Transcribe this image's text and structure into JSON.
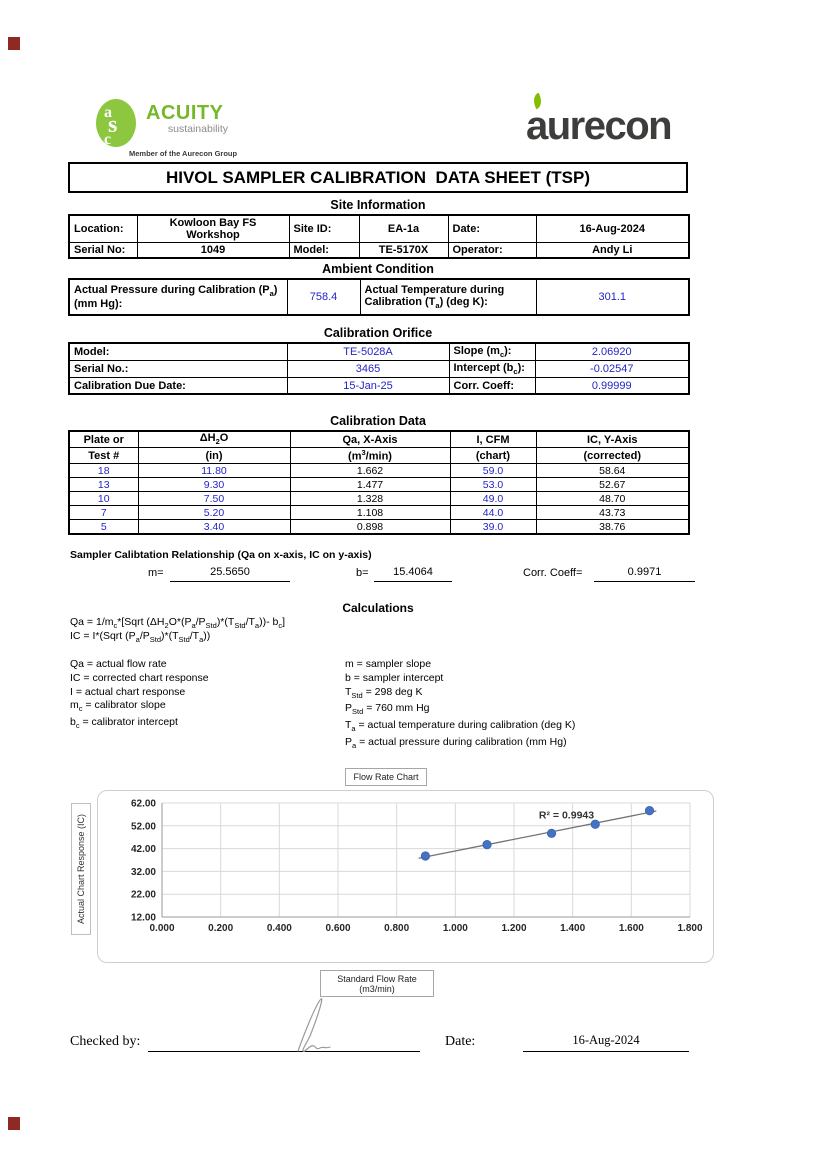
{
  "header": {
    "acuity": {
      "monogram": [
        "a",
        "s",
        "c"
      ],
      "name": "ACUITY",
      "tagline": "sustainability",
      "member_text": "Member of the Aurecon Group",
      "green": "#8dc63f"
    },
    "aurecon": {
      "wordmark": "aurecon",
      "dark": "#3d3d3b",
      "leaf_green": "#84bd00"
    }
  },
  "title": "HIVOL SAMPLER CALIBRATION  DATA SHEET (TSP)",
  "site": {
    "heading": "Site Information",
    "location_label": "Location:",
    "location_value": "Kowloon Bay FS Workshop",
    "site_id_label": "Site ID:",
    "site_id_value": "EA-1a",
    "date_label": "Date:",
    "date_value": "16-Aug-2024",
    "serial_label": "Serial No:",
    "serial_value": "1049",
    "model_label": "Model:",
    "model_value": "TE-5170X",
    "operator_label": "Operator:",
    "operator_value": "Andy Li"
  },
  "ambient": {
    "heading": "Ambient Condition",
    "pressure_label_html": "Actual Pressure during Calibration (P<sub>a</sub>)<br>(mm Hg):",
    "pressure_value": "758.4",
    "temperature_label_html": "Actual Temperature during<br>Calibration (T<sub>a</sub>) (deg K):",
    "temperature_value": "301.1"
  },
  "orifice": {
    "heading": "Calibration Orifice",
    "model_label": "Model:",
    "model_value": "TE-5028A",
    "slope_label_html": "Slope (m<sub>c</sub>):",
    "slope_value": "2.06920",
    "serial_label": "Serial No.:",
    "serial_value": "3465",
    "intercept_label_html": "Intercept (b<sub>c</sub>):",
    "intercept_value": "-0.02547",
    "due_label": "Calibration Due Date:",
    "due_value": "15-Jan-25",
    "corr_label": "Corr. Coeff:",
    "corr_value": "0.99999"
  },
  "calibration": {
    "heading": "Calibration Data",
    "col_headers_html": [
      [
        "Plate or",
        "Test #"
      ],
      [
        "ΔH<sub>2</sub>O",
        "(in)"
      ],
      [
        "Qa, X-Axis",
        "(m<sup>3</sup>/min)"
      ],
      [
        "I, CFM",
        "(chart)"
      ],
      [
        "IC, Y-Axis",
        "(corrected)"
      ]
    ],
    "rows": [
      [
        "18",
        "11.80",
        "1.662",
        "59.0",
        "58.64"
      ],
      [
        "13",
        "9.30",
        "1.477",
        "53.0",
        "52.67"
      ],
      [
        "10",
        "7.50",
        "1.328",
        "49.0",
        "48.70"
      ],
      [
        "7",
        "5.20",
        "1.108",
        "44.0",
        "43.73"
      ],
      [
        "5",
        "3.40",
        "0.898",
        "39.0",
        "38.76"
      ]
    ],
    "blue_columns": [
      0,
      1,
      3
    ]
  },
  "relationship": {
    "heading": "Sampler Calibtation Relationship (Qa on x-axis, IC on y-axis)",
    "m_label": "m=",
    "m_value": "25.5650",
    "b_label": "b=",
    "b_value": "15.4064",
    "corr_label": "Corr. Coeff=",
    "corr_value": "0.9971"
  },
  "calculations": {
    "heading": "Calculations",
    "formula1_html": "Qa = 1/m<sub>c</sub>*[Sqrt (ΔH<sub>2</sub>O*(P<sub>a</sub>/P<sub>Std</sub>)*(T<sub>Std</sub>/T<sub>a</sub>))- b<sub>c</sub>]",
    "formula2_html": "IC = I*(Sqrt (P<sub>a</sub>/P<sub>Std</sub>)*(T<sub>Std</sub>/T<sub>a</sub>))",
    "left_definitions_html": [
      "Qa = actual flow rate",
      "IC = corrected chart response",
      "I = actual chart response",
      "m<sub>c</sub>  = calibrator slope",
      "b<sub>c</sub>  = calibrator intercept"
    ],
    "right_definitions_html": [
      "m = sampler slope",
      "b  = sampler intercept",
      "T<sub>Std</sub> = 298 deg K",
      "P<sub>Std</sub> = 760 mm Hg",
      "T<sub>a</sub> = actual temperature during calibration (deg K)",
      "P<sub>a</sub> = actual pressure during calibration (mm Hg)"
    ]
  },
  "chart_labels": {
    "title_box": "Flow Rate Chart",
    "x_box_line1": "Standard Flow Rate",
    "x_box_line2": "(m3/min)",
    "y_box": "Actual Chart Response (IC)"
  },
  "chart_data": {
    "type": "scatter",
    "title": "Flow Rate Chart",
    "xlabel": "Standard Flow Rate (m3/min)",
    "ylabel": "Actual Chart Response (IC)",
    "x": [
      0.898,
      1.108,
      1.328,
      1.477,
      1.662
    ],
    "y": [
      38.76,
      43.73,
      48.7,
      52.67,
      58.64
    ],
    "trendline": {
      "m": 25.565,
      "b": 15.4064,
      "r2_label": "R² = 0.9943"
    },
    "xlim": [
      0,
      1.8
    ],
    "ylim": [
      12,
      62
    ],
    "x_ticks": [
      "0.000",
      "0.200",
      "0.400",
      "0.600",
      "0.800",
      "1.000",
      "1.200",
      "1.400",
      "1.600",
      "1.800"
    ],
    "y_ticks": [
      "12.00",
      "22.00",
      "32.00",
      "42.00",
      "52.00",
      "62.00"
    ],
    "grid": true,
    "legend": "none",
    "point_color": "#4472c4",
    "line_color": "#737373"
  },
  "footer": {
    "checked_by_label": "Checked by:",
    "date_label": "Date:",
    "date_value": "16-Aug-2024"
  },
  "colors": {
    "value_blue": "#2424c8",
    "acuity_green": "#8dc63f",
    "aurecon_dark": "#3d3d3b"
  }
}
